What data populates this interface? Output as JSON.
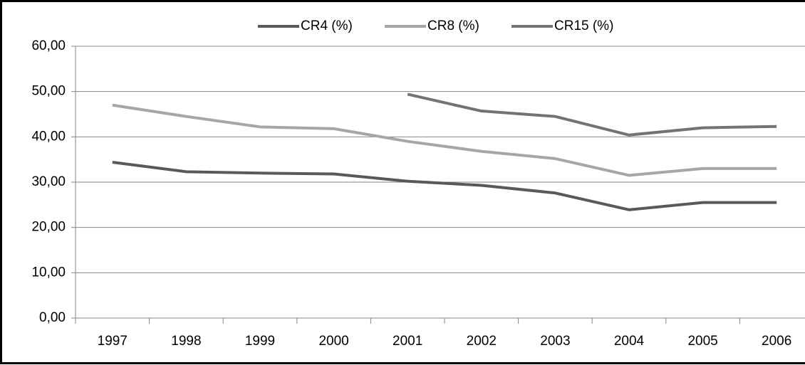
{
  "chart_data": {
    "type": "line",
    "categories": [
      "1997",
      "1998",
      "1999",
      "2000",
      "2001",
      "2002",
      "2003",
      "2004",
      "2005",
      "2006"
    ],
    "series": [
      {
        "name": "CR4 (%)",
        "color": "#595959",
        "values": [
          34.4,
          32.3,
          32.0,
          31.8,
          30.2,
          29.3,
          27.6,
          23.9,
          25.5,
          25.5
        ]
      },
      {
        "name": "CR8 (%)",
        "color": "#a6a6a6",
        "values": [
          47.0,
          44.5,
          42.2,
          41.8,
          39.0,
          36.8,
          35.2,
          31.5,
          33.0,
          33.0
        ]
      },
      {
        "name": "CR15 (%)",
        "color": "#737373",
        "values": [
          null,
          null,
          null,
          null,
          49.4,
          45.7,
          44.5,
          40.4,
          42.0,
          42.3
        ]
      }
    ],
    "ylim": [
      0,
      60
    ],
    "yticks": [
      {
        "value": 0,
        "label": "0,00"
      },
      {
        "value": 10,
        "label": "10,00"
      },
      {
        "value": 20,
        "label": "20,00"
      },
      {
        "value": 30,
        "label": "30,00"
      },
      {
        "value": 40,
        "label": "40,00"
      },
      {
        "value": 50,
        "label": "50,00"
      },
      {
        "value": 60,
        "label": "60,00"
      }
    ],
    "grid": true,
    "legend": "top"
  }
}
